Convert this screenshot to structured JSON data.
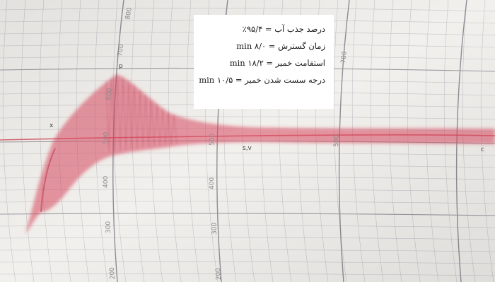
{
  "colors": {
    "paper": "#f2f0ec",
    "grid_major": "#8f8f96",
    "grid_minor": "#c4c4ca",
    "trace": "#d8485e",
    "scale_text": "#8d8d8d",
    "box_bg": "#ffffff",
    "box_text": "#1a1a1a"
  },
  "info_box": {
    "line1": "درصد جذب آب = ۹۵/۴٪",
    "line2": "زمان گسترش = ۸/۰ min",
    "line3": "استقامت خمیر = ۱۸/۲ min",
    "line4": "درجه سست شدن خمیر = ۱۰/۵ min"
  },
  "scale_labels": {
    "left_column": [
      "700",
      "600",
      "500",
      "400",
      "300",
      "200"
    ],
    "middle_column": [
      "800",
      "500",
      "400",
      "300",
      "200"
    ],
    "right_column": [
      "700",
      "500"
    ]
  }
}
